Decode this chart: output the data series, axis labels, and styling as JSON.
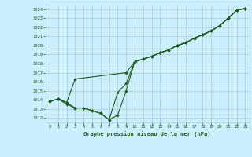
{
  "title": "Graphe pression niveau de la mer (hPa)",
  "background_color": "#cceeff",
  "grid_color": "#aacccc",
  "line_color": "#1a5c1a",
  "marker_color": "#1a5c1a",
  "xlim": [
    -0.5,
    23.5
  ],
  "ylim": [
    1011.5,
    1024.5
  ],
  "yticks": [
    1012,
    1013,
    1014,
    1015,
    1016,
    1017,
    1018,
    1019,
    1020,
    1021,
    1022,
    1023,
    1024
  ],
  "xticks": [
    0,
    1,
    2,
    3,
    4,
    5,
    6,
    7,
    8,
    9,
    10,
    11,
    12,
    13,
    14,
    15,
    16,
    17,
    18,
    19,
    20,
    21,
    22,
    23
  ],
  "series1": {
    "x": [
      0,
      1,
      2,
      3,
      4,
      5,
      6,
      7,
      8,
      9,
      10,
      11,
      12,
      13,
      14,
      15,
      16,
      17,
      18,
      19,
      20,
      21,
      22,
      23
    ],
    "y": [
      1013.8,
      1014.1,
      1013.7,
      1013.1,
      1013.1,
      1012.8,
      1012.5,
      1011.8,
      1012.3,
      1015.0,
      1018.2,
      1018.5,
      1018.8,
      1019.2,
      1019.5,
      1020.0,
      1020.3,
      1020.8,
      1021.2,
      1021.6,
      1022.2,
      1023.0,
      1023.9,
      1024.1
    ]
  },
  "series2": {
    "x": [
      0,
      1,
      2,
      3,
      4,
      5,
      6,
      7,
      8,
      9,
      10,
      11,
      12,
      13,
      14,
      15,
      16,
      17,
      18,
      19,
      20,
      21,
      22,
      23
    ],
    "y": [
      1013.8,
      1014.1,
      1013.5,
      1013.1,
      1013.1,
      1012.8,
      1012.5,
      1011.8,
      1014.8,
      1015.8,
      1018.2,
      1018.5,
      1018.8,
      1019.2,
      1019.5,
      1020.0,
      1020.3,
      1020.8,
      1021.2,
      1021.6,
      1022.2,
      1023.0,
      1023.9,
      1024.1
    ]
  },
  "series3": {
    "x": [
      0,
      1,
      2,
      3,
      9,
      10,
      11,
      12,
      13,
      14,
      15,
      16,
      17,
      18,
      19,
      20,
      21,
      22,
      23
    ],
    "y": [
      1013.8,
      1014.1,
      1013.7,
      1016.3,
      1017.0,
      1018.2,
      1018.5,
      1018.8,
      1019.2,
      1019.5,
      1020.0,
      1020.3,
      1020.8,
      1021.2,
      1021.6,
      1022.2,
      1023.0,
      1023.9,
      1024.1
    ]
  }
}
